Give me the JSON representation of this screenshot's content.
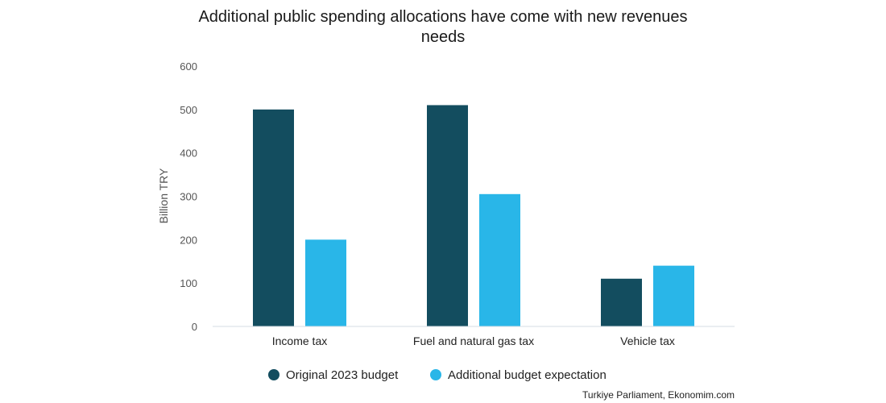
{
  "chart_data": {
    "type": "bar",
    "title_lines": [
      "Additional public spending allocations have come with new revenues",
      "needs"
    ],
    "ylabel": "Billion TRY",
    "xlabel": "",
    "ylim": [
      0,
      600
    ],
    "yticks": [
      "0",
      "100",
      "200",
      "300",
      "400",
      "500",
      "600"
    ],
    "categories": [
      "Income tax",
      "Fuel and natural gas tax",
      "Vehicle tax"
    ],
    "series": [
      {
        "name": "Original 2023 budget",
        "color": "#134d5f",
        "values": [
          500,
          510,
          110
        ]
      },
      {
        "name": "Additional budget expectation",
        "color": "#29b6e8",
        "values": [
          200,
          305,
          140
        ]
      }
    ],
    "grid": false,
    "legend_position": "bottom-center",
    "source": "Turkiye Parliament, Ekonomim.com"
  }
}
